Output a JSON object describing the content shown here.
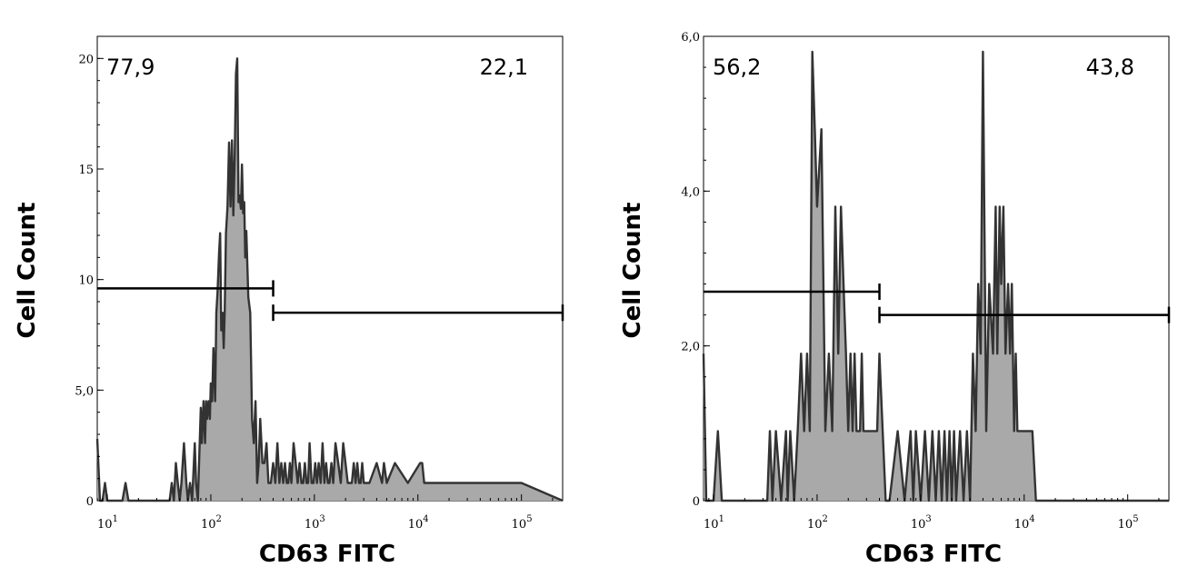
{
  "chart_data": [
    {
      "type": "area",
      "xlabel": "CD63 FITC",
      "ylabel": "Cell Count",
      "x_scale": "log",
      "xlim": [
        8,
        250000
      ],
      "ylim": [
        0,
        21
      ],
      "xticks": [
        {
          "value": 10,
          "base": "10",
          "exp": "1"
        },
        {
          "value": 100,
          "base": "10",
          "exp": "2"
        },
        {
          "value": 1000,
          "base": "10",
          "exp": "3"
        },
        {
          "value": 10000,
          "base": "10",
          "exp": "4"
        },
        {
          "value": 100000,
          "base": "10",
          "exp": "5"
        }
      ],
      "yticks": [
        {
          "value": 0,
          "label": "0"
        },
        {
          "value": 5,
          "label": "5,0"
        },
        {
          "value": 10,
          "label": "10"
        },
        {
          "value": 15,
          "label": "15"
        },
        {
          "value": 20,
          "label": "20"
        }
      ],
      "gates": [
        {
          "label": "77,9",
          "x_range": [
            8,
            400
          ],
          "y": 9.6,
          "label_position": "top-left"
        },
        {
          "label": "22,1",
          "x_range": [
            400,
            250000
          ],
          "y": 8.5,
          "label_position": "top-right"
        }
      ],
      "histogram": {
        "x": [
          8,
          8.5,
          9,
          9.5,
          10,
          12,
          14,
          15,
          16,
          18,
          25,
          35,
          40,
          42,
          44,
          46,
          48,
          50,
          52,
          55,
          58,
          60,
          63,
          66,
          70,
          72,
          75,
          78,
          80,
          82,
          85,
          88,
          90,
          92,
          95,
          98,
          100,
          103,
          106,
          110,
          113,
          116,
          120,
          123,
          126,
          130,
          133,
          136,
          140,
          145,
          150,
          155,
          160,
          165,
          170,
          175,
          180,
          185,
          190,
          195,
          200,
          205,
          210,
          215,
          220,
          230,
          240,
          250,
          260,
          270,
          280,
          290,
          300,
          315,
          330,
          345,
          360,
          380,
          400,
          420,
          440,
          460,
          480,
          500,
          520,
          540,
          560,
          580,
          600,
          630,
          660,
          690,
          720,
          750,
          780,
          810,
          840,
          870,
          900,
          940,
          980,
          1020,
          1060,
          1100,
          1150,
          1200,
          1250,
          1300,
          1350,
          1400,
          1460,
          1520,
          1600,
          1700,
          1800,
          1900,
          2000,
          2100,
          2200,
          2300,
          2400,
          2500,
          2600,
          2700,
          2800,
          2900,
          3000,
          3100,
          3200,
          3300,
          3400,
          4000,
          4500,
          4700,
          5000,
          6000,
          8000,
          10500,
          11000,
          11500,
          12000,
          20000,
          100000,
          250000
        ],
        "y": [
          2.8,
          0,
          0,
          0.8,
          0,
          0,
          0,
          0.8,
          0,
          0,
          0,
          0,
          0,
          0.8,
          0,
          1.7,
          0.8,
          0,
          0.8,
          2.6,
          0.8,
          0,
          0.8,
          0,
          2.6,
          0.8,
          0,
          2.6,
          4.2,
          2.6,
          4.5,
          2.6,
          4.5,
          3.7,
          4.5,
          3.7,
          5.3,
          4.5,
          6.9,
          4.5,
          8.5,
          9.4,
          11.2,
          12.1,
          7.7,
          8.5,
          6.9,
          8.5,
          12.1,
          13.3,
          16.2,
          13.3,
          16.3,
          12.9,
          15.5,
          19.3,
          20.0,
          13.5,
          13.8,
          13.2,
          15.2,
          13.0,
          13.5,
          11.0,
          12.2,
          9.2,
          8.5,
          3.7,
          2.6,
          4.5,
          0.8,
          1.7,
          3.7,
          1.7,
          1.7,
          2.6,
          0.8,
          0.8,
          1.7,
          0.8,
          2.6,
          0.8,
          1.7,
          0.8,
          1.7,
          0.8,
          0.8,
          1.7,
          0.8,
          2.6,
          1.7,
          0.8,
          1.7,
          0.8,
          0.8,
          1.7,
          0.8,
          0.8,
          2.6,
          0.8,
          0.8,
          1.7,
          0.8,
          1.7,
          0.8,
          2.6,
          0.8,
          1.7,
          0.8,
          0.8,
          1.7,
          0.8,
          2.6,
          1.7,
          0.8,
          2.6,
          1.7,
          0.8,
          0.8,
          0.8,
          1.7,
          0.8,
          1.7,
          0.8,
          0.8,
          1.7,
          0.8,
          0.8,
          0.8,
          0.8,
          0.8,
          1.7,
          0.8,
          1.7,
          0.8,
          1.7,
          0.8,
          1.7,
          1.7,
          0.8,
          0.8,
          0.8,
          0.8,
          0
        ]
      }
    },
    {
      "type": "area",
      "xlabel": "CD63 FITC",
      "ylabel": "Cell Count",
      "x_scale": "log",
      "xlim": [
        8,
        250000
      ],
      "ylim": [
        0,
        6.0
      ],
      "xticks": [
        {
          "value": 10,
          "base": "10",
          "exp": "1"
        },
        {
          "value": 100,
          "base": "10",
          "exp": "2"
        },
        {
          "value": 1000,
          "base": "10",
          "exp": "3"
        },
        {
          "value": 10000,
          "base": "10",
          "exp": "4"
        },
        {
          "value": 100000,
          "base": "10",
          "exp": "5"
        }
      ],
      "yticks": [
        {
          "value": 0,
          "label": "0"
        },
        {
          "value": 2.0,
          "label": "2,0"
        },
        {
          "value": 4.0,
          "label": "4,0"
        },
        {
          "value": 6.0,
          "label": "6,0"
        }
      ],
      "gates": [
        {
          "label": "56,2",
          "x_range": [
            8,
            400
          ],
          "y": 2.7,
          "label_position": "top-left"
        },
        {
          "label": "43,8",
          "x_range": [
            400,
            250000
          ],
          "y": 2.4,
          "label_position": "top-right"
        }
      ],
      "histogram": {
        "x": [
          8,
          8.5,
          9,
          10,
          11,
          12,
          20,
          33,
          35,
          37,
          40,
          45,
          50,
          52,
          55,
          60,
          65,
          70,
          75,
          80,
          85,
          90,
          95,
          100,
          110,
          120,
          130,
          140,
          150,
          160,
          170,
          180,
          190,
          200,
          210,
          220,
          230,
          240,
          250,
          260,
          270,
          280,
          300,
          320,
          340,
          360,
          380,
          400,
          430,
          460,
          500,
          600,
          700,
          800,
          850,
          900,
          1000,
          1100,
          1200,
          1300,
          1400,
          1500,
          1600,
          1700,
          1800,
          1900,
          2000,
          2100,
          2200,
          2400,
          2600,
          2800,
          3000,
          3200,
          3400,
          3600,
          3800,
          4000,
          4300,
          4600,
          5000,
          5300,
          5500,
          5800,
          6000,
          6300,
          6600,
          7000,
          7300,
          7600,
          8000,
          8300,
          8600,
          9000,
          9500,
          10000,
          11000,
          12000,
          13000,
          15000,
          17000,
          250000
        ],
        "y": [
          1.9,
          0,
          0,
          0,
          0.9,
          0,
          0,
          0,
          0.9,
          0,
          0.9,
          0,
          0.9,
          0,
          0.9,
          0,
          0.9,
          1.9,
          0.9,
          1.9,
          0.9,
          5.8,
          4.8,
          3.8,
          4.8,
          0.9,
          1.9,
          0.9,
          3.8,
          1.9,
          3.8,
          2.8,
          1.9,
          0.9,
          1.9,
          0.9,
          1.9,
          0.9,
          0.9,
          0.9,
          1.9,
          0.9,
          0.9,
          0.9,
          0.9,
          0.9,
          0.9,
          1.9,
          0.9,
          0,
          0,
          0.9,
          0,
          0.9,
          0,
          0.9,
          0,
          0.9,
          0,
          0.9,
          0,
          0.9,
          0,
          0.9,
          0,
          0.9,
          0,
          0.9,
          0,
          0.9,
          0,
          0.9,
          0,
          1.9,
          0.9,
          2.8,
          1.9,
          5.8,
          0.9,
          2.8,
          1.9,
          3.8,
          1.9,
          3.8,
          2.8,
          3.8,
          1.9,
          2.8,
          1.9,
          2.8,
          0.9,
          1.9,
          0.9,
          0.9,
          0.9,
          0.9,
          0.9,
          0.9,
          0,
          0,
          0,
          0
        ]
      }
    }
  ]
}
